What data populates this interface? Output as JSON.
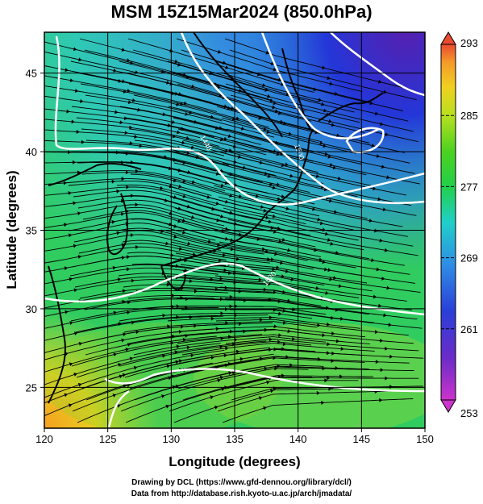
{
  "title": "MSM 15Z15Mar2024 (850.0hPa)",
  "credits": {
    "line1": "Drawing by DCL (https://www.gfd-dennou.org/library/dcl/)",
    "line2": "Data from http://database.rish.kyoto-u.ac.jp/arch/jmadata/"
  },
  "chart_data": {
    "type": "heatmap",
    "title": "MSM 15Z15Mar2024 (850.0hPa)",
    "xlabel": "Longitude (degrees)",
    "ylabel": "Latitude  (degrees)",
    "xlim": [
      120,
      150
    ],
    "ylim": [
      22.4,
      47.6
    ],
    "x_ticks": [
      "120",
      "125",
      "130",
      "135",
      "140",
      "145",
      "150"
    ],
    "y_ticks": [
      "25",
      "30",
      "35",
      "40",
      "45"
    ],
    "colorbar": {
      "min": 253,
      "max": 293,
      "labels": [
        "293",
        "285",
        "277",
        "269",
        "261",
        "253"
      ]
    },
    "contour_labels": [
      "1440",
      "1500",
      "1520"
    ],
    "grid": true
  },
  "colors": {
    "streamline": "#000000",
    "contour": "#ffffff",
    "coastline": "#000000"
  }
}
